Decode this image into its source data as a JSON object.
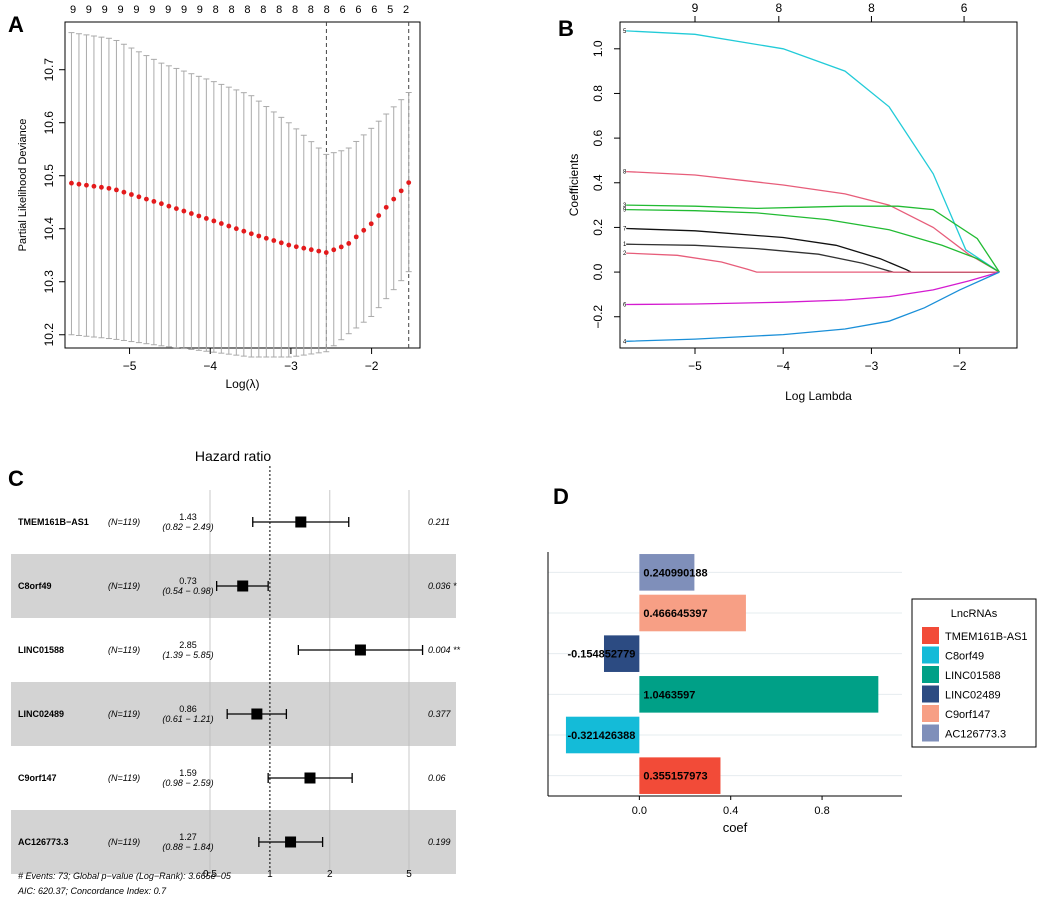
{
  "panel_labels": {
    "a": "A",
    "b": "B",
    "c": "C",
    "d": "D"
  },
  "chart_data": [
    {
      "id": "A",
      "type": "scatter",
      "title": "",
      "xlabel": "Log(λ)",
      "ylabel": "Partial Likelihood Deviance",
      "xlim": [
        -5.8,
        -1.4
      ],
      "ylim": [
        10.175,
        10.79
      ],
      "x_ticks": [
        -5,
        -4,
        -3,
        -2
      ],
      "x_tick_labels": [
        "−5",
        "−4",
        "−3",
        "−2"
      ],
      "y_ticks": [
        10.2,
        10.3,
        10.4,
        10.5,
        10.6,
        10.7
      ],
      "y_tick_labels": [
        "10.2",
        "10.3",
        "10.4",
        "10.5",
        "10.6",
        "10.7"
      ],
      "top_counts": [
        "9",
        "9",
        "9",
        "9",
        "9",
        "9",
        "9",
        "9",
        "9",
        "8",
        "8",
        "8",
        "8",
        "8",
        "8",
        "8",
        "8",
        "6",
        "6",
        "6",
        "5",
        "2"
      ],
      "x_start": -5.72,
      "x_end": -1.54,
      "n_points": 46,
      "lambda_min": -2.56,
      "lambda_1se": -1.54,
      "mean_anchor_x": [
        -5.72,
        -5.2,
        -4.6,
        -4.0,
        -3.5,
        -3.0,
        -2.56,
        -2.3,
        -2.0,
        -1.54
      ],
      "mean_anchor_y": [
        10.486,
        10.475,
        10.447,
        10.417,
        10.391,
        10.368,
        10.355,
        10.37,
        10.41,
        10.487
      ],
      "upper_anchor_y": [
        10.77,
        10.758,
        10.712,
        10.68,
        10.652,
        10.597,
        10.54,
        10.55,
        10.59,
        10.657
      ],
      "lower_anchor_y": [
        10.2,
        10.192,
        10.179,
        10.168,
        10.158,
        10.158,
        10.168,
        10.2,
        10.235,
        10.319
      ]
    },
    {
      "id": "B",
      "type": "line",
      "title": "",
      "xlabel": "Log Lambda",
      "ylabel": "Coefficients",
      "xlim": [
        -5.85,
        -1.35
      ],
      "ylim": [
        -0.34,
        1.12
      ],
      "x_ticks": [
        -5,
        -4,
        -3,
        -2
      ],
      "x_tick_labels": [
        "−5",
        "−4",
        "−3",
        "−2"
      ],
      "y_ticks": [
        -0.2,
        0.0,
        0.2,
        0.4,
        0.6,
        0.8,
        1.0
      ],
      "y_tick_labels": [
        "−0.2",
        "0.0",
        "0.2",
        "0.4",
        "0.6",
        "0.8",
        "1.0"
      ],
      "top_axis_ticks": [
        -5.0,
        -4.05,
        -3.0,
        -1.95
      ],
      "top_axis_labels": [
        "9",
        "8",
        "8",
        "6"
      ],
      "series": [
        {
          "name": "5",
          "color": "#22cbd8",
          "x": [
            -5.78,
            -5.0,
            -4.0,
            -3.3,
            -2.8,
            -2.3,
            -1.93,
            -1.55
          ],
          "y": [
            1.08,
            1.065,
            1.0,
            0.9,
            0.74,
            0.44,
            0.1,
            0.0
          ]
        },
        {
          "name": "8",
          "color": "#e75d7a",
          "x": [
            -5.78,
            -5.0,
            -4.0,
            -3.3,
            -2.8,
            -2.3,
            -1.9,
            -1.55
          ],
          "y": [
            0.45,
            0.435,
            0.39,
            0.35,
            0.3,
            0.2,
            0.08,
            0.0
          ]
        },
        {
          "name": "3",
          "color": "#22bb33",
          "x": [
            -5.78,
            -5.0,
            -4.3,
            -3.8,
            -3.3,
            -2.7,
            -2.3,
            -1.8,
            -1.55
          ],
          "y": [
            0.3,
            0.295,
            0.285,
            0.29,
            0.295,
            0.295,
            0.28,
            0.15,
            0.0
          ]
        },
        {
          "name": "9",
          "color": "#22bb33",
          "x": [
            -5.78,
            -5.0,
            -4.3,
            -3.5,
            -2.8,
            -2.2,
            -1.8,
            -1.55
          ],
          "y": [
            0.28,
            0.275,
            0.265,
            0.235,
            0.19,
            0.12,
            0.06,
            0.0
          ]
        },
        {
          "name": "7",
          "color": "#111111",
          "x": [
            -5.78,
            -5.0,
            -4.0,
            -3.4,
            -2.9,
            -2.6,
            -2.55,
            -1.55
          ],
          "y": [
            0.195,
            0.185,
            0.155,
            0.12,
            0.06,
            0.01,
            0.0,
            0.0
          ]
        },
        {
          "name": "1",
          "color": "#333333",
          "x": [
            -5.78,
            -5.0,
            -4.3,
            -3.6,
            -3.1,
            -2.8,
            -2.75,
            -1.55
          ],
          "y": [
            0.125,
            0.12,
            0.105,
            0.08,
            0.04,
            0.005,
            0.0,
            0.0
          ]
        },
        {
          "name": "2",
          "color": "#e75d7a",
          "x": [
            -5.78,
            -5.2,
            -4.7,
            -4.4,
            -4.3,
            -1.55
          ],
          "y": [
            0.085,
            0.075,
            0.045,
            0.012,
            0.0,
            0.0
          ]
        },
        {
          "name": "6",
          "color": "#d41bd0",
          "x": [
            -5.78,
            -5.0,
            -4.0,
            -3.3,
            -2.8,
            -2.3,
            -1.9,
            -1.55
          ],
          "y": [
            -0.145,
            -0.143,
            -0.135,
            -0.125,
            -0.11,
            -0.08,
            -0.04,
            0.0
          ]
        },
        {
          "name": "4",
          "color": "#1a8fd8",
          "x": [
            -5.78,
            -5.0,
            -4.0,
            -3.3,
            -2.8,
            -2.4,
            -2.0,
            -1.55
          ],
          "y": [
            -0.31,
            -0.3,
            -0.28,
            -0.255,
            -0.22,
            -0.16,
            -0.08,
            0.0
          ]
        }
      ]
    },
    {
      "id": "C",
      "type": "scatter",
      "title": "Hazard ratio",
      "scale": "log",
      "x_ticks": [
        0.5,
        1,
        2,
        5
      ],
      "x_tick_labels": [
        "0.5",
        "1",
        "2",
        "5"
      ],
      "xlim": [
        0.26,
        7.6
      ],
      "reference_line": 1,
      "rows": [
        {
          "name": "TMEM161B−AS1",
          "n": "(N=119)",
          "hr": 1.43,
          "lo": 0.82,
          "hi": 2.49,
          "hr_text": "1.43",
          "ci_text": "(0.82 − 2.49)",
          "p_text": "0.211",
          "shaded": false
        },
        {
          "name": "C8orf49",
          "n": "(N=119)",
          "hr": 0.73,
          "lo": 0.54,
          "hi": 0.98,
          "hr_text": "0.73",
          "ci_text": "(0.54 − 0.98)",
          "p_text": "0.036 *",
          "shaded": true
        },
        {
          "name": "LINC01588",
          "n": "(N=119)",
          "hr": 2.85,
          "lo": 1.39,
          "hi": 5.85,
          "hr_text": "2.85",
          "ci_text": "(1.39 − 5.85)",
          "p_text": "0.004 **",
          "shaded": false
        },
        {
          "name": "LINC02489",
          "n": "(N=119)",
          "hr": 0.86,
          "lo": 0.61,
          "hi": 1.21,
          "hr_text": "0.86",
          "ci_text": "(0.61 − 1.21)",
          "p_text": "0.377",
          "shaded": true
        },
        {
          "name": "C9orf147",
          "n": "(N=119)",
          "hr": 1.59,
          "lo": 0.98,
          "hi": 2.59,
          "hr_text": "1.59",
          "ci_text": "(0.98 − 2.59)",
          "p_text": "0.06",
          "shaded": false
        },
        {
          "name": "AC126773.3",
          "n": "(N=119)",
          "hr": 1.27,
          "lo": 0.88,
          "hi": 1.84,
          "hr_text": "1.27",
          "ci_text": "(0.88 − 1.84)",
          "p_text": "0.199",
          "shaded": true
        }
      ],
      "footnote_1": "# Events: 73; Global p−value (Log−Rank): 3.665e−05",
      "footnote_2": "AIC: 620.37; Concordance Index: 0.7"
    },
    {
      "id": "D",
      "type": "bar",
      "orientation": "horizontal",
      "xlabel": "coef",
      "xlim": [
        -0.4,
        1.15
      ],
      "x_ticks": [
        0.0,
        0.4,
        0.8
      ],
      "x_tick_labels": [
        "0.0",
        "0.4",
        "0.8"
      ],
      "bars": [
        {
          "name": "AC126773.3",
          "value": 0.240990188,
          "label": "0.240990188",
          "color": "#7f8fba"
        },
        {
          "name": "C9orf147",
          "value": 0.466645397,
          "label": "0.466645397",
          "color": "#f79f85"
        },
        {
          "name": "LINC02489",
          "value": -0.154852779,
          "label": "-0.154852779",
          "color": "#2c4b82"
        },
        {
          "name": "LINC01588",
          "value": 1.0463597,
          "label": "1.0463597",
          "color": "#00a087"
        },
        {
          "name": "C8orf49",
          "value": -0.321426388,
          "label": "-0.321426388",
          "color": "#14bbd8"
        },
        {
          "name": "TMEM161B-AS1",
          "value": 0.355157973,
          "label": "0.355157973",
          "color": "#f24b38"
        }
      ],
      "legend_title": "LncRNAs",
      "legend_items": [
        {
          "name": "TMEM161B-AS1",
          "color": "#f24b38"
        },
        {
          "name": "C8orf49",
          "color": "#14bbd8"
        },
        {
          "name": "LINC01588",
          "color": "#00a087"
        },
        {
          "name": "LINC02489",
          "color": "#2c4b82"
        },
        {
          "name": "C9orf147",
          "color": "#f79f85"
        },
        {
          "name": "AC126773.3",
          "color": "#7f8fba"
        }
      ]
    }
  ]
}
